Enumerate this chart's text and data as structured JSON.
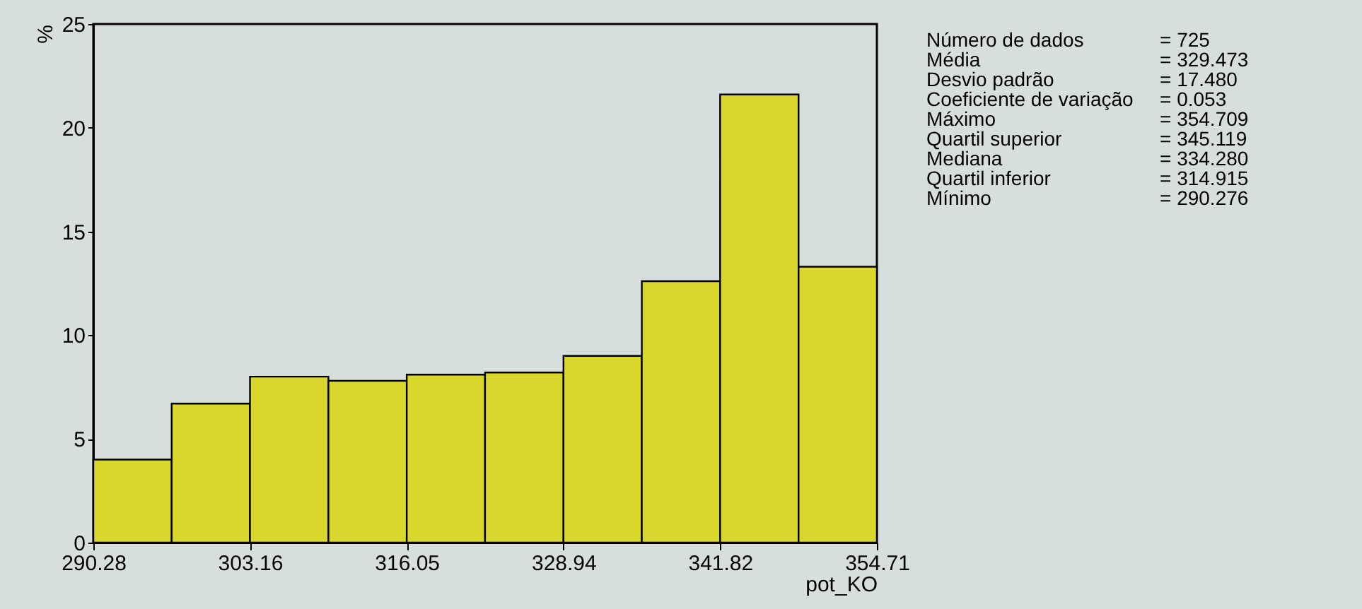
{
  "chart_data": {
    "type": "histogram",
    "xlabel": "pot_KO",
    "ylabel": "%",
    "bins": [
      290.28,
      296.72,
      303.16,
      309.61,
      316.05,
      322.49,
      328.94,
      335.38,
      341.82,
      348.27,
      354.71
    ],
    "values": [
      4.0,
      6.7,
      8.0,
      7.8,
      8.1,
      8.2,
      9.0,
      12.6,
      21.6,
      13.3
    ],
    "color": "#d9d62c",
    "xlim": [
      290.28,
      354.71
    ],
    "xticks": [
      290.28,
      303.16,
      316.05,
      328.94,
      341.82,
      354.71
    ],
    "ylim": [
      0,
      25
    ],
    "yticks": [
      0,
      5,
      10,
      15,
      20,
      25
    ],
    "grid": false,
    "annotations": [
      "Número de dados = 725",
      "Média = 329.473",
      "Desvio padrão = 17.480",
      "Coeficiente de variação = 0.053",
      "Máximo = 354.709",
      "Quartil superior = 345.119",
      "Mediana = 334.280",
      "Quartil inferior = 314.915",
      "Mínimo = 290.276"
    ]
  }
}
